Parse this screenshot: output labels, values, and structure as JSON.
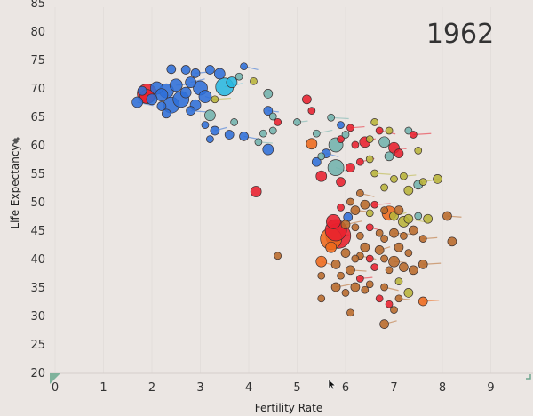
{
  "chart_data": {
    "type": "scatter",
    "annotation_year": "1962",
    "xlabel": "Fertility Rate",
    "ylabel": "Life Expectancy",
    "xlim": [
      0,
      9.8
    ],
    "ylim": [
      18,
      86
    ],
    "x_ticks": [
      "0",
      "1",
      "2",
      "3",
      "4",
      "5",
      "6",
      "7",
      "8",
      "9"
    ],
    "y_ticks": [
      "20",
      "25",
      "30",
      "35",
      "40",
      "45",
      "50",
      "55",
      "60",
      "65",
      "70",
      "75",
      "80",
      "85"
    ],
    "colors": {
      "blue": "#2f6fd8",
      "cyan": "#29b8e0",
      "teal": "#72b3ad",
      "red": "#e8202e",
      "orange": "#ee6a1c",
      "brown": "#b86a2a",
      "olive": "#b8b43a"
    },
    "points": [
      {
        "x": 1.9,
        "y": 69.0,
        "s": 11,
        "c": "red"
      },
      {
        "x": 1.9,
        "y": 68.5,
        "s": 8,
        "c": "red"
      },
      {
        "x": 2.0,
        "y": 68.0,
        "s": 6,
        "c": "blue"
      },
      {
        "x": 1.7,
        "y": 67.5,
        "s": 6,
        "c": "blue"
      },
      {
        "x": 1.8,
        "y": 69.5,
        "s": 5,
        "c": "blue"
      },
      {
        "x": 2.1,
        "y": 70.0,
        "s": 7,
        "c": "blue"
      },
      {
        "x": 2.2,
        "y": 68.8,
        "s": 7,
        "c": "blue"
      },
      {
        "x": 2.3,
        "y": 69.5,
        "s": 8,
        "c": "blue"
      },
      {
        "x": 2.4,
        "y": 67.0,
        "s": 9,
        "c": "blue"
      },
      {
        "x": 2.5,
        "y": 70.5,
        "s": 7,
        "c": "blue"
      },
      {
        "x": 2.6,
        "y": 68.0,
        "s": 9,
        "c": "blue"
      },
      {
        "x": 2.7,
        "y": 69.2,
        "s": 6,
        "c": "blue"
      },
      {
        "x": 2.8,
        "y": 71.0,
        "s": 6,
        "c": "blue"
      },
      {
        "x": 2.9,
        "y": 67.0,
        "s": 6,
        "c": "blue"
      },
      {
        "x": 3.0,
        "y": 70.0,
        "s": 8,
        "c": "blue"
      },
      {
        "x": 3.1,
        "y": 68.5,
        "s": 7,
        "c": "blue"
      },
      {
        "x": 2.3,
        "y": 65.5,
        "s": 5,
        "c": "blue"
      },
      {
        "x": 2.2,
        "y": 66.8,
        "s": 5,
        "c": "blue"
      },
      {
        "x": 2.8,
        "y": 66.0,
        "s": 5,
        "c": "blue"
      },
      {
        "x": 2.4,
        "y": 73.3,
        "s": 5,
        "c": "blue"
      },
      {
        "x": 2.7,
        "y": 73.2,
        "s": 5,
        "c": "blue"
      },
      {
        "x": 2.9,
        "y": 72.6,
        "s": 5,
        "c": "blue"
      },
      {
        "x": 3.2,
        "y": 73.2,
        "s": 5,
        "c": "blue"
      },
      {
        "x": 3.4,
        "y": 72.5,
        "s": 6,
        "c": "blue"
      },
      {
        "x": 3.5,
        "y": 70.2,
        "s": 10,
        "c": "cyan"
      },
      {
        "x": 3.65,
        "y": 71.0,
        "s": 6,
        "c": "cyan"
      },
      {
        "x": 3.8,
        "y": 72.0,
        "s": 4,
        "c": "teal"
      },
      {
        "x": 3.9,
        "y": 73.8,
        "s": 4,
        "c": "blue"
      },
      {
        "x": 4.1,
        "y": 71.2,
        "s": 4,
        "c": "olive"
      },
      {
        "x": 4.4,
        "y": 69.0,
        "s": 5,
        "c": "teal"
      },
      {
        "x": 4.4,
        "y": 66.0,
        "s": 5,
        "c": "blue"
      },
      {
        "x": 4.5,
        "y": 65.0,
        "s": 4,
        "c": "teal"
      },
      {
        "x": 4.6,
        "y": 64.0,
        "s": 4,
        "c": "red"
      },
      {
        "x": 3.3,
        "y": 68.0,
        "s": 4,
        "c": "olive"
      },
      {
        "x": 3.2,
        "y": 65.2,
        "s": 6,
        "c": "teal"
      },
      {
        "x": 3.1,
        "y": 63.5,
        "s": 4,
        "c": "blue"
      },
      {
        "x": 3.3,
        "y": 62.5,
        "s": 5,
        "c": "blue"
      },
      {
        "x": 3.2,
        "y": 61.0,
        "s": 4,
        "c": "blue"
      },
      {
        "x": 3.6,
        "y": 61.8,
        "s": 5,
        "c": "blue"
      },
      {
        "x": 3.9,
        "y": 61.5,
        "s": 5,
        "c": "blue"
      },
      {
        "x": 3.7,
        "y": 64.0,
        "s": 4,
        "c": "teal"
      },
      {
        "x": 4.3,
        "y": 62.0,
        "s": 4,
        "c": "teal"
      },
      {
        "x": 4.2,
        "y": 60.5,
        "s": 4,
        "c": "teal"
      },
      {
        "x": 4.5,
        "y": 62.5,
        "s": 4,
        "c": "teal"
      },
      {
        "x": 4.4,
        "y": 59.2,
        "s": 6,
        "c": "blue"
      },
      {
        "x": 5.0,
        "y": 64.0,
        "s": 4,
        "c": "teal"
      },
      {
        "x": 5.2,
        "y": 68.0,
        "s": 5,
        "c": "red"
      },
      {
        "x": 5.3,
        "y": 66.0,
        "s": 4,
        "c": "red"
      },
      {
        "x": 5.4,
        "y": 62.0,
        "s": 4,
        "c": "teal"
      },
      {
        "x": 5.3,
        "y": 60.2,
        "s": 6,
        "c": "orange"
      },
      {
        "x": 5.5,
        "y": 58.0,
        "s": 4,
        "c": "teal"
      },
      {
        "x": 5.6,
        "y": 58.5,
        "s": 5,
        "c": "blue"
      },
      {
        "x": 5.4,
        "y": 57.0,
        "s": 5,
        "c": "blue"
      },
      {
        "x": 5.8,
        "y": 60.0,
        "s": 8,
        "c": "teal"
      },
      {
        "x": 5.7,
        "y": 64.8,
        "s": 4,
        "c": "teal"
      },
      {
        "x": 5.9,
        "y": 63.5,
        "s": 4,
        "c": "blue"
      },
      {
        "x": 5.9,
        "y": 61.0,
        "s": 4,
        "c": "red"
      },
      {
        "x": 6.1,
        "y": 63.0,
        "s": 4,
        "c": "red"
      },
      {
        "x": 6.0,
        "y": 61.8,
        "s": 4,
        "c": "teal"
      },
      {
        "x": 6.2,
        "y": 60.0,
        "s": 4,
        "c": "red"
      },
      {
        "x": 6.4,
        "y": 60.5,
        "s": 6,
        "c": "red"
      },
      {
        "x": 6.5,
        "y": 61.0,
        "s": 4,
        "c": "olive"
      },
      {
        "x": 6.6,
        "y": 64.0,
        "s": 4,
        "c": "olive"
      },
      {
        "x": 6.7,
        "y": 62.5,
        "s": 4,
        "c": "red"
      },
      {
        "x": 6.8,
        "y": 60.5,
        "s": 6,
        "c": "teal"
      },
      {
        "x": 6.9,
        "y": 58.0,
        "s": 5,
        "c": "teal"
      },
      {
        "x": 7.0,
        "y": 59.5,
        "s": 6,
        "c": "red"
      },
      {
        "x": 7.1,
        "y": 58.5,
        "s": 5,
        "c": "red"
      },
      {
        "x": 7.3,
        "y": 62.5,
        "s": 4,
        "c": "teal"
      },
      {
        "x": 7.4,
        "y": 61.8,
        "s": 4,
        "c": "red"
      },
      {
        "x": 7.5,
        "y": 59.0,
        "s": 4,
        "c": "olive"
      },
      {
        "x": 6.9,
        "y": 62.5,
        "s": 4,
        "c": "olive"
      },
      {
        "x": 6.3,
        "y": 57.0,
        "s": 4,
        "c": "red"
      },
      {
        "x": 6.1,
        "y": 56.0,
        "s": 5,
        "c": "red"
      },
      {
        "x": 6.5,
        "y": 57.5,
        "s": 4,
        "c": "olive"
      },
      {
        "x": 5.8,
        "y": 56.0,
        "s": 9,
        "c": "teal"
      },
      {
        "x": 5.9,
        "y": 53.5,
        "s": 5,
        "c": "red"
      },
      {
        "x": 5.5,
        "y": 54.5,
        "s": 6,
        "c": "red"
      },
      {
        "x": 6.6,
        "y": 55.0,
        "s": 4,
        "c": "olive"
      },
      {
        "x": 6.8,
        "y": 52.5,
        "s": 4,
        "c": "olive"
      },
      {
        "x": 7.0,
        "y": 54.0,
        "s": 4,
        "c": "olive"
      },
      {
        "x": 7.2,
        "y": 54.5,
        "s": 4,
        "c": "olive"
      },
      {
        "x": 7.3,
        "y": 52.0,
        "s": 5,
        "c": "olive"
      },
      {
        "x": 7.5,
        "y": 53.0,
        "s": 5,
        "c": "teal"
      },
      {
        "x": 7.6,
        "y": 53.5,
        "s": 4,
        "c": "olive"
      },
      {
        "x": 7.9,
        "y": 54.0,
        "s": 5,
        "c": "olive"
      },
      {
        "x": 4.15,
        "y": 51.8,
        "s": 6,
        "c": "red"
      },
      {
        "x": 6.3,
        "y": 51.5,
        "s": 4,
        "c": "brown"
      },
      {
        "x": 6.1,
        "y": 50.0,
        "s": 4,
        "c": "brown"
      },
      {
        "x": 6.4,
        "y": 49.5,
        "s": 5,
        "c": "brown"
      },
      {
        "x": 6.2,
        "y": 48.5,
        "s": 5,
        "c": "brown"
      },
      {
        "x": 5.9,
        "y": 49.0,
        "s": 4,
        "c": "red"
      },
      {
        "x": 6.5,
        "y": 48.0,
        "s": 4,
        "c": "olive"
      },
      {
        "x": 6.6,
        "y": 49.5,
        "s": 4,
        "c": "red"
      },
      {
        "x": 6.8,
        "y": 48.5,
        "s": 4,
        "c": "brown"
      },
      {
        "x": 6.9,
        "y": 48.0,
        "s": 8,
        "c": "orange"
      },
      {
        "x": 7.0,
        "y": 47.5,
        "s": 5,
        "c": "olive"
      },
      {
        "x": 7.1,
        "y": 48.5,
        "s": 5,
        "c": "brown"
      },
      {
        "x": 7.2,
        "y": 46.5,
        "s": 6,
        "c": "olive"
      },
      {
        "x": 7.3,
        "y": 47.0,
        "s": 5,
        "c": "olive"
      },
      {
        "x": 7.5,
        "y": 47.5,
        "s": 4,
        "c": "teal"
      },
      {
        "x": 7.7,
        "y": 47.0,
        "s": 5,
        "c": "olive"
      },
      {
        "x": 8.1,
        "y": 47.5,
        "s": 5,
        "c": "brown"
      },
      {
        "x": 5.75,
        "y": 46.5,
        "s": 8,
        "c": "red"
      },
      {
        "x": 6.05,
        "y": 47.3,
        "s": 5,
        "c": "blue"
      },
      {
        "x": 5.85,
        "y": 44.0,
        "s": 14,
        "c": "red"
      },
      {
        "x": 5.7,
        "y": 43.5,
        "s": 12,
        "c": "orange"
      },
      {
        "x": 5.8,
        "y": 45.0,
        "s": 12,
        "c": "red"
      },
      {
        "x": 6.0,
        "y": 46.0,
        "s": 5,
        "c": "brown"
      },
      {
        "x": 6.2,
        "y": 45.5,
        "s": 4,
        "c": "brown"
      },
      {
        "x": 6.3,
        "y": 44.0,
        "s": 4,
        "c": "brown"
      },
      {
        "x": 6.5,
        "y": 45.5,
        "s": 4,
        "c": "red"
      },
      {
        "x": 6.7,
        "y": 44.5,
        "s": 4,
        "c": "brown"
      },
      {
        "x": 6.8,
        "y": 43.5,
        "s": 4,
        "c": "brown"
      },
      {
        "x": 7.0,
        "y": 44.5,
        "s": 5,
        "c": "brown"
      },
      {
        "x": 7.2,
        "y": 44.0,
        "s": 4,
        "c": "brown"
      },
      {
        "x": 7.4,
        "y": 45.0,
        "s": 5,
        "c": "brown"
      },
      {
        "x": 7.6,
        "y": 43.5,
        "s": 4,
        "c": "brown"
      },
      {
        "x": 8.2,
        "y": 43.0,
        "s": 5,
        "c": "brown"
      },
      {
        "x": 6.4,
        "y": 42.0,
        "s": 5,
        "c": "brown"
      },
      {
        "x": 6.7,
        "y": 41.5,
        "s": 5,
        "c": "brown"
      },
      {
        "x": 7.1,
        "y": 42.0,
        "s": 5,
        "c": "brown"
      },
      {
        "x": 7.3,
        "y": 41.0,
        "s": 4,
        "c": "brown"
      },
      {
        "x": 6.3,
        "y": 40.5,
        "s": 4,
        "c": "brown"
      },
      {
        "x": 6.5,
        "y": 40.0,
        "s": 4,
        "c": "red"
      },
      {
        "x": 6.8,
        "y": 40.0,
        "s": 4,
        "c": "brown"
      },
      {
        "x": 7.0,
        "y": 39.5,
        "s": 6,
        "c": "brown"
      },
      {
        "x": 7.2,
        "y": 38.5,
        "s": 5,
        "c": "brown"
      },
      {
        "x": 7.4,
        "y": 38.0,
        "s": 5,
        "c": "brown"
      },
      {
        "x": 7.6,
        "y": 39.0,
        "s": 5,
        "c": "brown"
      },
      {
        "x": 6.6,
        "y": 38.5,
        "s": 4,
        "c": "red"
      },
      {
        "x": 6.9,
        "y": 38.0,
        "s": 4,
        "c": "brown"
      },
      {
        "x": 5.7,
        "y": 42.0,
        "s": 6,
        "c": "orange"
      },
      {
        "x": 6.0,
        "y": 41.0,
        "s": 5,
        "c": "brown"
      },
      {
        "x": 6.2,
        "y": 40.0,
        "s": 4,
        "c": "brown"
      },
      {
        "x": 5.5,
        "y": 39.5,
        "s": 6,
        "c": "orange"
      },
      {
        "x": 4.6,
        "y": 40.5,
        "s": 4,
        "c": "brown"
      },
      {
        "x": 5.8,
        "y": 39.0,
        "s": 5,
        "c": "brown"
      },
      {
        "x": 6.1,
        "y": 38.0,
        "s": 5,
        "c": "brown"
      },
      {
        "x": 5.5,
        "y": 37.0,
        "s": 4,
        "c": "brown"
      },
      {
        "x": 5.9,
        "y": 37.0,
        "s": 4,
        "c": "brown"
      },
      {
        "x": 6.3,
        "y": 36.5,
        "s": 4,
        "c": "red"
      },
      {
        "x": 6.5,
        "y": 35.5,
        "s": 4,
        "c": "brown"
      },
      {
        "x": 6.2,
        "y": 35.0,
        "s": 5,
        "c": "brown"
      },
      {
        "x": 5.8,
        "y": 35.0,
        "s": 5,
        "c": "brown"
      },
      {
        "x": 6.0,
        "y": 34.0,
        "s": 4,
        "c": "brown"
      },
      {
        "x": 6.4,
        "y": 34.5,
        "s": 4,
        "c": "brown"
      },
      {
        "x": 6.8,
        "y": 35.0,
        "s": 4,
        "c": "brown"
      },
      {
        "x": 7.1,
        "y": 36.0,
        "s": 4,
        "c": "olive"
      },
      {
        "x": 7.3,
        "y": 34.0,
        "s": 5,
        "c": "olive"
      },
      {
        "x": 7.1,
        "y": 33.0,
        "s": 4,
        "c": "brown"
      },
      {
        "x": 6.7,
        "y": 33.0,
        "s": 4,
        "c": "red"
      },
      {
        "x": 6.9,
        "y": 32.0,
        "s": 4,
        "c": "red"
      },
      {
        "x": 7.6,
        "y": 32.5,
        "s": 5,
        "c": "orange"
      },
      {
        "x": 5.5,
        "y": 33.0,
        "s": 4,
        "c": "brown"
      },
      {
        "x": 6.1,
        "y": 30.5,
        "s": 4,
        "c": "brown"
      },
      {
        "x": 6.8,
        "y": 28.5,
        "s": 5,
        "c": "brown"
      },
      {
        "x": 7.0,
        "y": 31.0,
        "s": 4,
        "c": "brown"
      }
    ]
  }
}
